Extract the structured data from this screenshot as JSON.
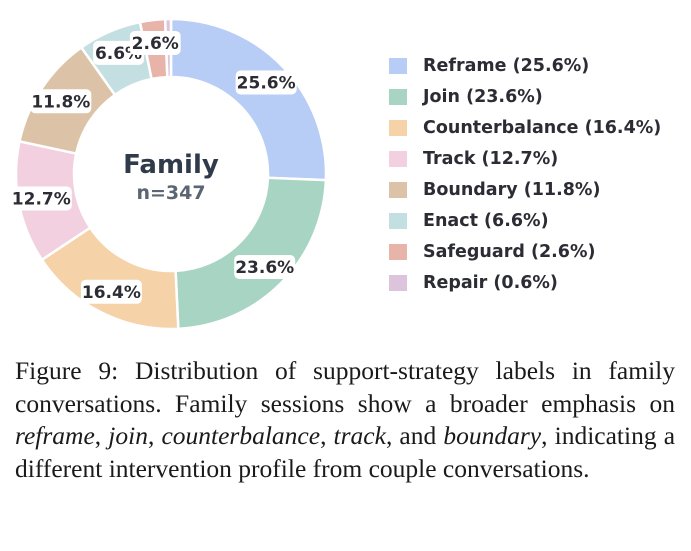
{
  "chart_data": {
    "type": "pie",
    "donut": true,
    "center_title": "Family",
    "center_subtitle": "n=347",
    "slices": [
      {
        "label": "Reframe",
        "value": 25.6,
        "display": "25.6%",
        "legend": "Reframe (25.6%)",
        "color": "#b7cdf5"
      },
      {
        "label": "Join",
        "value": 23.6,
        "display": "23.6%",
        "legend": "Join (23.6%)",
        "color": "#a8d5c3"
      },
      {
        "label": "Counterbalance",
        "value": 16.4,
        "display": "16.4%",
        "legend": "Counterbalance (16.4%)",
        "color": "#f5d2a8"
      },
      {
        "label": "Track",
        "value": 12.7,
        "display": "12.7%",
        "legend": "Track (12.7%)",
        "color": "#f3d0df"
      },
      {
        "label": "Boundary",
        "value": 11.8,
        "display": "11.8%",
        "legend": "Boundary (11.8%)",
        "color": "#dcc3a8"
      },
      {
        "label": "Enact",
        "value": 6.6,
        "display": "6.6%",
        "legend": "Enact (6.6%)",
        "color": "#c3dfe1"
      },
      {
        "label": "Safeguard",
        "value": 2.6,
        "display": "2.6%",
        "legend": "Safeguard (2.6%)",
        "color": "#e8b3a8"
      },
      {
        "label": "Repair",
        "value": 0.6,
        "display": "",
        "legend": "Repair (0.6%)",
        "color": "#dbc4dc"
      }
    ],
    "legend_position": "right"
  },
  "caption": {
    "prefix": "Figure 9: Distribution of support-strategy labels in family conversations. Family sessions show a broader emphasis on ",
    "t1": "reframe",
    "s1": ", ",
    "t2": "join",
    "s2": ", ",
    "t3": "counterbalance",
    "s3": ", ",
    "t4": "track",
    "s4": ", and ",
    "t5": "boundary",
    "suffix": ", indicating a different intervention profile from couple conversations."
  }
}
